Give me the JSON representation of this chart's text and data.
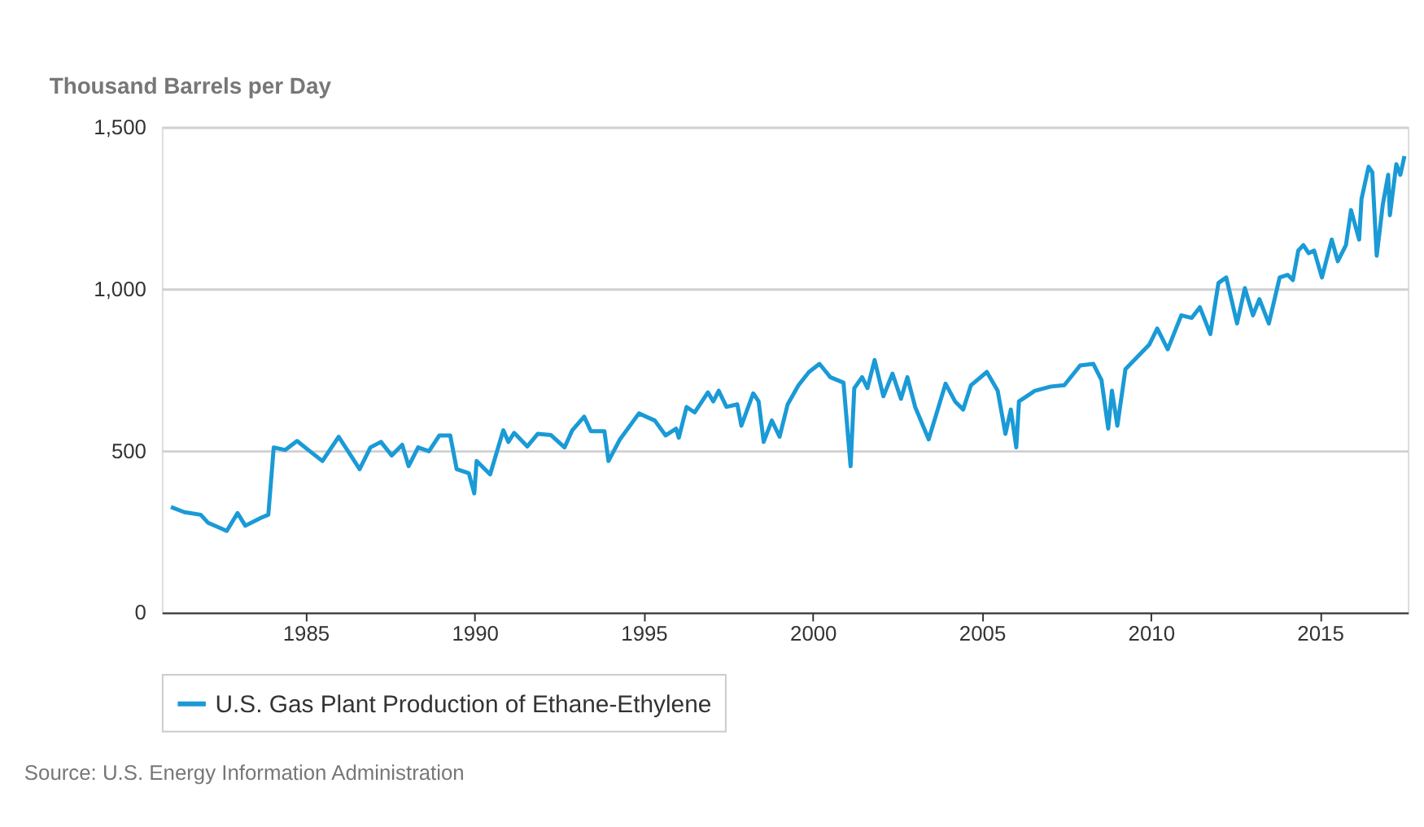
{
  "chart_data": {
    "type": "line",
    "ylabel": "Thousand Barrels per Day",
    "annotations": [
      "Source: U.S. Energy Information Administration"
    ],
    "x": [
      1981.02,
      1981.42,
      1981.9,
      1982.12,
      1982.67,
      1982.99,
      1983.22,
      1983.69,
      1983.9,
      1984.06,
      1984.4,
      1984.75,
      1985.19,
      1985.5,
      1985.98,
      1986.29,
      1986.6,
      1986.92,
      1987.23,
      1987.55,
      1987.86,
      1988.05,
      1988.33,
      1988.65,
      1988.96,
      1989.28,
      1989.47,
      1989.83,
      1989.99,
      1990.06,
      1990.46,
      1990.85,
      1991.0,
      1991.17,
      1991.56,
      1991.87,
      1992.26,
      1992.66,
      1992.89,
      1993.24,
      1993.44,
      1993.84,
      1993.96,
      1994.3,
      1994.86,
      1995.33,
      1995.65,
      1995.96,
      1996.04,
      1996.27,
      1996.51,
      1996.9,
      1997.06,
      1997.22,
      1997.45,
      1997.77,
      1997.89,
      1998.24,
      1998.4,
      1998.55,
      1998.79,
      1999.02,
      1999.26,
      1999.58,
      1999.89,
      2000.2,
      2000.52,
      2000.91,
      2001.12,
      2001.23,
      2001.46,
      2001.62,
      2001.83,
      2002.09,
      2002.36,
      2002.61,
      2002.8,
      2003.03,
      2003.43,
      2003.93,
      2004.21,
      2004.45,
      2004.68,
      2005.15,
      2005.47,
      2005.7,
      2005.86,
      2006.02,
      2006.1,
      2006.57,
      2007.04,
      2007.44,
      2007.91,
      2008.3,
      2008.54,
      2008.74,
      2008.85,
      2009.01,
      2009.25,
      2009.56,
      2009.95,
      2010.19,
      2010.5,
      2010.9,
      2011.21,
      2011.45,
      2011.76,
      2012.0,
      2012.23,
      2012.55,
      2012.78,
      2013.02,
      2013.21,
      2013.49,
      2013.81,
      2014.05,
      2014.2,
      2014.36,
      2014.51,
      2014.67,
      2014.83,
      2015.06,
      2015.35,
      2015.53,
      2015.77,
      2015.92,
      2016.16,
      2016.23,
      2016.44,
      2016.55,
      2016.68,
      2016.86,
      2017.02,
      2017.07,
      2017.26,
      2017.38,
      2017.5
    ],
    "series": [
      {
        "name": "U.S. Gas Plant Production of Ethane-Ethylene",
        "color": "#1a9ad6",
        "values": [
          326,
          310,
          302,
          277,
          252,
          307,
          268,
          293,
          302,
          510,
          502,
          530,
          493,
          468,
          543,
          493,
          443,
          510,
          527,
          485,
          518,
          452,
          510,
          498,
          547,
          547,
          443,
          430,
          368,
          468,
          427,
          563,
          527,
          555,
          513,
          552,
          548,
          510,
          563,
          605,
          560,
          560,
          468,
          535,
          615,
          593,
          547,
          568,
          540,
          635,
          618,
          680,
          652,
          685,
          635,
          643,
          577,
          677,
          652,
          527,
          593,
          543,
          643,
          702,
          743,
          768,
          727,
          710,
          452,
          693,
          727,
          693,
          780,
          668,
          738,
          660,
          727,
          635,
          535,
          707,
          652,
          627,
          702,
          743,
          685,
          552,
          627,
          510,
          652,
          685,
          698,
          702,
          763,
          768,
          718,
          568,
          685,
          577,
          752,
          785,
          827,
          877,
          813,
          918,
          910,
          943,
          860,
          1018,
          1035,
          893,
          1002,
          918,
          968,
          893,
          1035,
          1043,
          1027,
          1118,
          1135,
          1110,
          1118,
          1035,
          1152,
          1085,
          1135,
          1243,
          1152,
          1277,
          1377,
          1360,
          1102,
          1260,
          1352,
          1227,
          1385,
          1352,
          1410
        ]
      }
    ],
    "xlim": [
      1980.75,
      2017.6
    ],
    "ylim": [
      0,
      1500
    ],
    "xticks": [
      1985,
      1990,
      1995,
      2000,
      2005,
      2010,
      2015
    ],
    "yticks": [
      0,
      {
        "value": 500,
        "label": "500"
      },
      {
        "value": 1000,
        "label": "1,000"
      },
      {
        "value": 1500,
        "label": "1,500"
      }
    ],
    "grid": "y",
    "legend": "bottom",
    "marker": "none",
    "line_style": "solid"
  }
}
